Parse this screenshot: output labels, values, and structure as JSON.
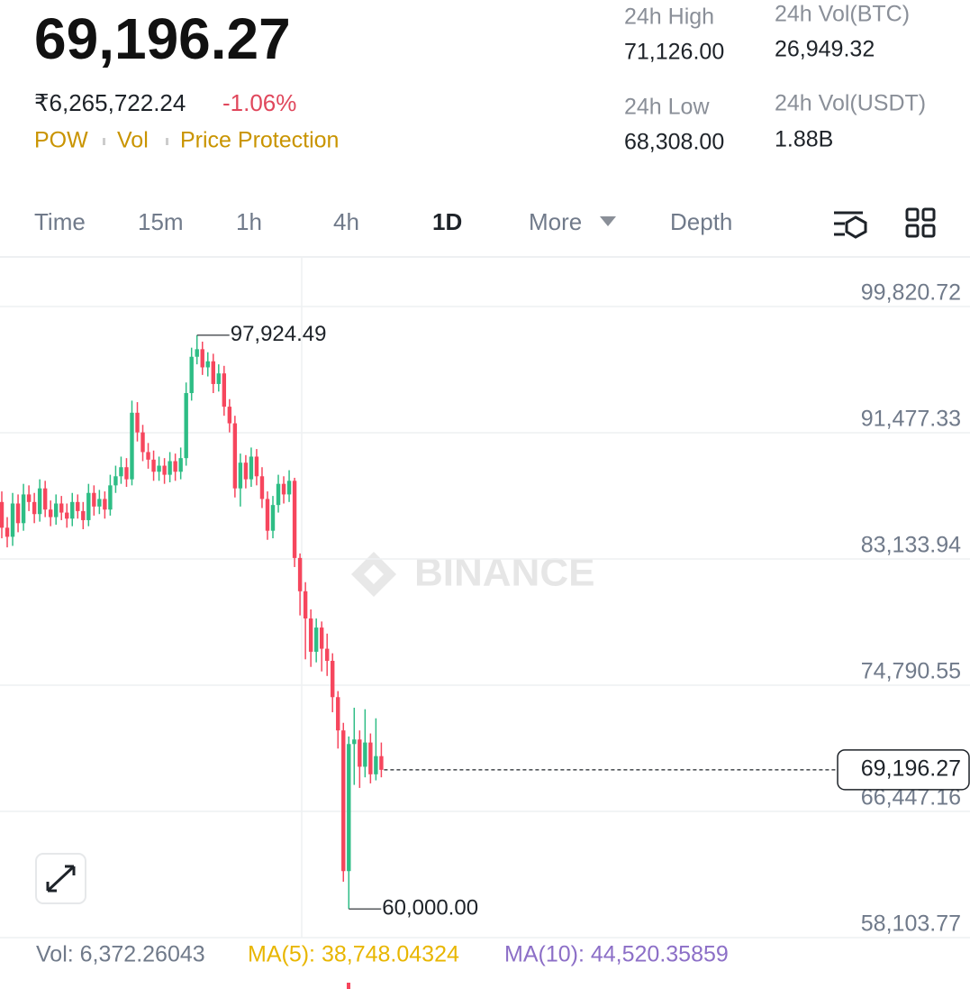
{
  "header": {
    "price": "69,196.27",
    "local_price": "₹6,265,722.24",
    "change": "-1.06%",
    "tags": [
      "POW",
      "Vol",
      "Price Protection"
    ]
  },
  "stats": [
    {
      "label": "24h High",
      "value": "71,126.00"
    },
    {
      "label": "24h Low",
      "value": "68,308.00"
    },
    {
      "label": "24h Vol(BTC)",
      "value": "26,949.32"
    },
    {
      "label": "24h Vol(USDT)",
      "value": "1.88B"
    }
  ],
  "tabs": [
    "Time",
    "15m",
    "1h",
    "4h",
    "1D",
    "More",
    "Depth"
  ],
  "chart_data": {
    "type": "candlestick",
    "watermark": "BINANCE",
    "grid": true,
    "up_color": "#2ebd85",
    "down_color": "#f6465d",
    "series": [
      {
        "open": [
          86900,
          85200,
          84600,
          86800,
          85500,
          87400,
          86900,
          86100,
          87800,
          86400,
          85900,
          86800,
          86200,
          85800,
          86900,
          86300,
          85700,
          87500,
          86600,
          87100,
          86400,
          88000,
          88600,
          89200,
          88400,
          92800,
          91500,
          90200,
          89700,
          88900,
          89300,
          88700,
          89600,
          88900,
          89800,
          94100,
          96500,
          97000,
          95800,
          96200,
          94700,
          95400,
          93200,
          92100,
          87800,
          89500,
          88400,
          89900,
          88600,
          87100,
          85000,
          86700,
          88100,
          87400,
          88300,
          83200,
          81000,
          79200,
          77000,
          78600,
          77200,
          76400,
          74000,
          71800,
          62500,
          70900,
          71200,
          69400,
          71000,
          68900,
          70100
        ],
        "high": [
          87600,
          85900,
          87500,
          87400,
          88100,
          88000,
          87500,
          88400,
          88300,
          87000,
          87400,
          87300,
          86800,
          87500,
          87400,
          86900,
          88100,
          88000,
          87700,
          87600,
          88700,
          89300,
          89900,
          89800,
          93600,
          93500,
          92000,
          90800,
          90300,
          89900,
          89800,
          90200,
          90100,
          90500,
          94800,
          97100,
          97924.49,
          97500,
          96800,
          96700,
          96000,
          95900,
          93700,
          92600,
          90100,
          90000,
          90500,
          90400,
          89200,
          87600,
          87300,
          88700,
          88600,
          89000,
          88500,
          83500,
          81600,
          79800,
          79200,
          79000,
          78200,
          76900,
          74400,
          72300,
          71400,
          73300,
          71800,
          73200,
          71600,
          72600,
          71000
        ],
        "low": [
          84500,
          83900,
          84000,
          84900,
          85000,
          86300,
          85500,
          85600,
          85900,
          85300,
          85400,
          85700,
          85200,
          85300,
          85800,
          85100,
          85300,
          86000,
          86100,
          85800,
          86000,
          87500,
          88100,
          87900,
          88000,
          90900,
          89600,
          89100,
          88300,
          88300,
          88100,
          88200,
          88300,
          88400,
          89300,
          93600,
          96000,
          95300,
          95200,
          94100,
          94200,
          92600,
          91500,
          87200,
          86600,
          87800,
          87900,
          88000,
          86500,
          84400,
          84500,
          86200,
          86800,
          86900,
          82600,
          79400,
          76500,
          76000,
          76300,
          75700,
          75400,
          73000,
          70600,
          61800,
          60000,
          68200,
          68000,
          68700,
          68300,
          68500,
          68700
        ],
        "close": [
          85200,
          84600,
          86800,
          85500,
          87400,
          86900,
          86100,
          87800,
          86400,
          85900,
          86800,
          86200,
          85800,
          86900,
          86300,
          85700,
          87500,
          86600,
          87100,
          86400,
          88000,
          88600,
          89200,
          88400,
          92800,
          91500,
          90200,
          89700,
          88900,
          89300,
          88700,
          89600,
          88900,
          89800,
          94100,
          96500,
          97000,
          95800,
          96200,
          94700,
          95400,
          93200,
          92100,
          87800,
          89500,
          88400,
          89900,
          88600,
          87100,
          85000,
          86700,
          88100,
          87400,
          88300,
          83200,
          81000,
          79200,
          77000,
          78600,
          77200,
          76400,
          74000,
          71800,
          62500,
          70900,
          71200,
          69400,
          71000,
          68900,
          70100,
          69196.27
        ]
      }
    ],
    "ylim": [
      58103.77,
      103099
    ],
    "yticks": [
      {
        "value": 99820.72,
        "label": "99,820.72"
      },
      {
        "value": 91477.33,
        "label": "91,477.33"
      },
      {
        "value": 83133.94,
        "label": "83,133.94"
      },
      {
        "value": 74790.55,
        "label": "74,790.55"
      },
      {
        "value": 66447.16,
        "label": "66,447.16"
      },
      {
        "value": 58103.77,
        "label": "58,103.77"
      }
    ],
    "annotations": [
      {
        "value": 97924.49,
        "label": "97,924.49"
      },
      {
        "value": 60000,
        "label": "60,000.00"
      }
    ],
    "current_price": {
      "value": 69196.27,
      "label": "69,196.27"
    },
    "indicators": [
      {
        "text": "Vol: 6,372.26043",
        "color": "#707a8a"
      },
      {
        "text": "MA(5): 38,748.04324",
        "color": "#e8b600"
      },
      {
        "text": "MA(10): 44,520.35859",
        "color": "#8c6fc7"
      }
    ]
  }
}
